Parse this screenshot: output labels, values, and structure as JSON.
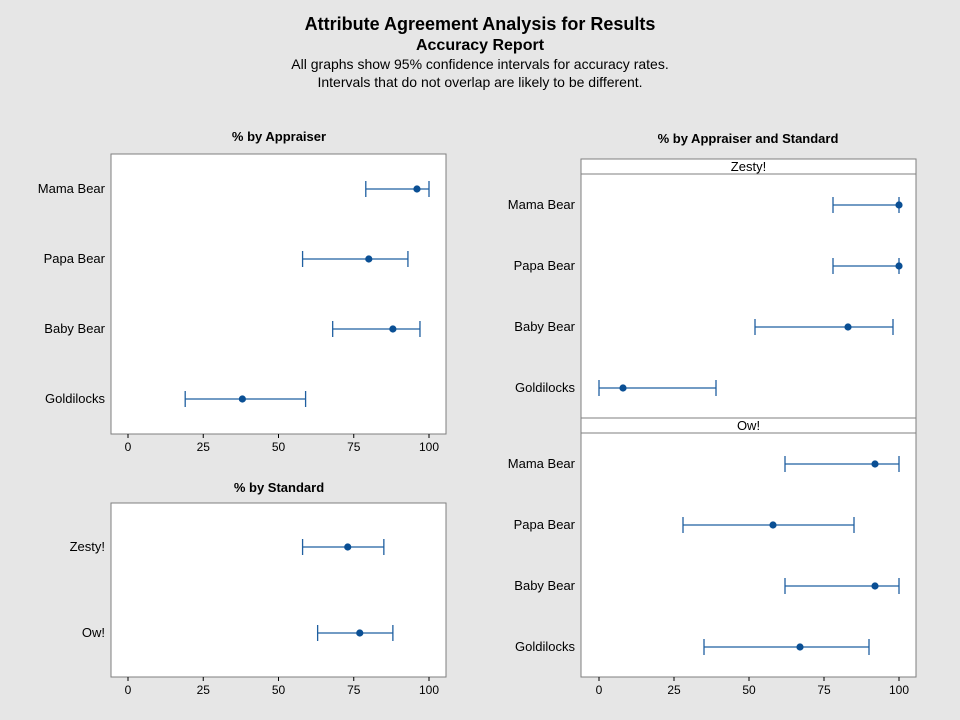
{
  "header": {
    "title": "Attribute Agreement Analysis for Results",
    "subtitle": "Accuracy Report",
    "note_line1": "All graphs show 95% confidence intervals for accuracy rates.",
    "note_line2": "Intervals that do not overlap are likely to be different."
  },
  "colors": {
    "background": "#e6e6e6",
    "plot_background": "#ffffff",
    "frame": "#7f7f7f",
    "interval": "#1f5fa0",
    "point": "#0a4f94"
  },
  "chart_data": [
    {
      "type": "interval",
      "title": "% by Appraiser",
      "xlim": [
        0,
        100
      ],
      "xticks": [
        0,
        25,
        50,
        75,
        100
      ],
      "categories": [
        "Mama Bear",
        "Papa Bear",
        "Baby Bear",
        "Goldilocks"
      ],
      "points": [
        {
          "category": "Mama Bear",
          "estimate": 96,
          "lower": 79,
          "upper": 100
        },
        {
          "category": "Papa Bear",
          "estimate": 80,
          "lower": 58,
          "upper": 93
        },
        {
          "category": "Baby Bear",
          "estimate": 88,
          "lower": 68,
          "upper": 97
        },
        {
          "category": "Goldilocks",
          "estimate": 38,
          "lower": 19,
          "upper": 59
        }
      ]
    },
    {
      "type": "interval",
      "title": "% by Standard",
      "xlim": [
        0,
        100
      ],
      "xticks": [
        0,
        25,
        50,
        75,
        100
      ],
      "categories": [
        "Zesty!",
        "Ow!"
      ],
      "points": [
        {
          "category": "Zesty!",
          "estimate": 73,
          "lower": 58,
          "upper": 85
        },
        {
          "category": "Ow!",
          "estimate": 77,
          "lower": 63,
          "upper": 88
        }
      ]
    },
    {
      "type": "interval",
      "title": "% by Appraiser and Standard",
      "xlim": [
        0,
        100
      ],
      "xticks": [
        0,
        25,
        50,
        75,
        100
      ],
      "panels": [
        {
          "label": "Zesty!",
          "categories": [
            "Mama Bear",
            "Papa Bear",
            "Baby Bear",
            "Goldilocks"
          ],
          "points": [
            {
              "category": "Mama Bear",
              "estimate": 100,
              "lower": 78,
              "upper": 100
            },
            {
              "category": "Papa Bear",
              "estimate": 100,
              "lower": 78,
              "upper": 100
            },
            {
              "category": "Baby Bear",
              "estimate": 83,
              "lower": 52,
              "upper": 98
            },
            {
              "category": "Goldilocks",
              "estimate": 8,
              "lower": 0,
              "upper": 39
            }
          ]
        },
        {
          "label": "Ow!",
          "categories": [
            "Mama Bear",
            "Papa Bear",
            "Baby Bear",
            "Goldilocks"
          ],
          "points": [
            {
              "category": "Mama Bear",
              "estimate": 92,
              "lower": 62,
              "upper": 100
            },
            {
              "category": "Papa Bear",
              "estimate": 58,
              "lower": 28,
              "upper": 85
            },
            {
              "category": "Baby Bear",
              "estimate": 92,
              "lower": 62,
              "upper": 100
            },
            {
              "category": "Goldilocks",
              "estimate": 67,
              "lower": 35,
              "upper": 90
            }
          ]
        }
      ]
    }
  ]
}
